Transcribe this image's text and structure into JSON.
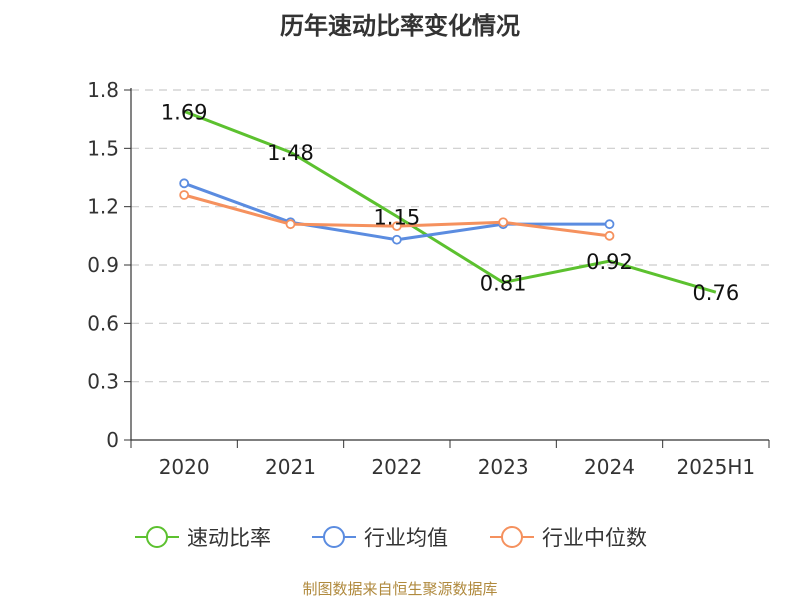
{
  "title": "历年速动比率变化情况",
  "source": "制图数据来自恒生聚源数据库",
  "chart_data": {
    "type": "line",
    "categories": [
      "2020",
      "2021",
      "2022",
      "2023",
      "2024",
      "2025H1"
    ],
    "ylim": [
      0,
      1.8
    ],
    "yticks": [
      "0",
      "0.3",
      "0.6",
      "0.9",
      "1.2",
      "1.5",
      "1.8"
    ],
    "grid": true,
    "legend_position": "bottom",
    "series": [
      {
        "name": "速动比率",
        "color": "#5cc12f",
        "values": [
          1.69,
          1.48,
          1.15,
          0.81,
          0.92,
          0.76
        ],
        "labels": [
          "1.69",
          "1.48",
          "1.15",
          "0.81",
          "0.92",
          "0.76"
        ],
        "markers": false
      },
      {
        "name": "行业均值",
        "color": "#5b8ce0",
        "values": [
          1.32,
          1.12,
          1.03,
          1.11,
          1.11,
          null
        ],
        "markers": true
      },
      {
        "name": "行业中位数",
        "color": "#f5915e",
        "values": [
          1.26,
          1.11,
          1.1,
          1.12,
          1.05,
          null
        ],
        "markers": true
      }
    ]
  }
}
